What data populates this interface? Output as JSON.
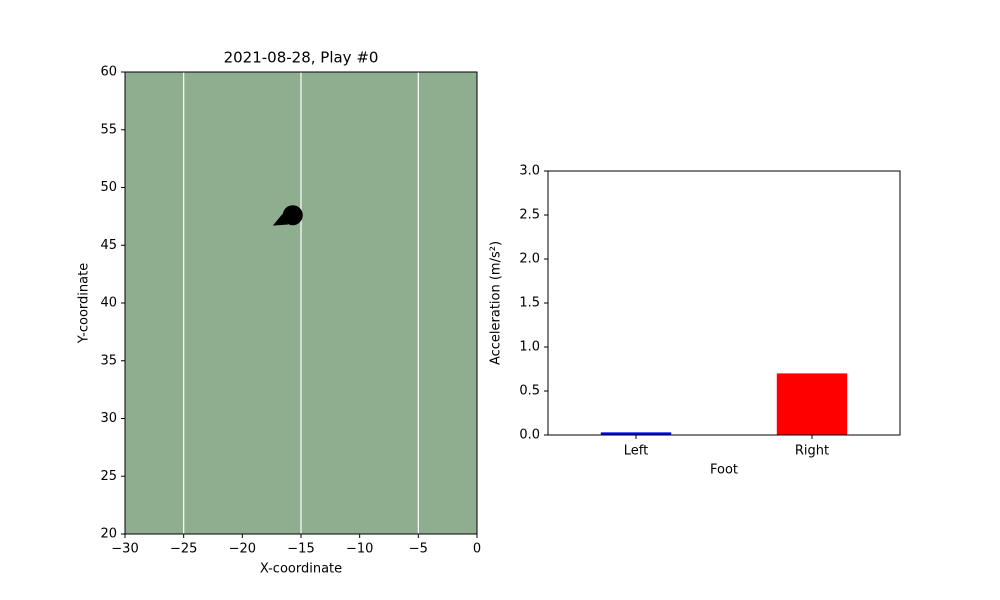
{
  "chart_data": [
    {
      "type": "scatter",
      "title": "2021-08-28, Play #0",
      "xlabel": "X-coordinate",
      "ylabel": "Y-coordinate",
      "x": [
        -15.7
      ],
      "values": [
        47.6
      ],
      "color": "#000000",
      "facecolor": "#8fae8f",
      "arrow_to": [
        [
          -17.4,
          46.7
        ]
      ],
      "vlines": [
        -25,
        -15,
        -5
      ],
      "xlim": [
        -30,
        0
      ],
      "ylim": [
        20,
        60
      ],
      "xticks": [
        {
          "value": -30,
          "label": "−30"
        },
        {
          "value": -25,
          "label": "−25"
        },
        {
          "value": -20,
          "label": "−20"
        },
        {
          "value": -15,
          "label": "−15"
        },
        {
          "value": -10,
          "label": "−10"
        },
        {
          "value": -5,
          "label": "−5"
        },
        0
      ],
      "yticks": [
        20,
        25,
        30,
        35,
        40,
        45,
        50,
        55,
        60
      ]
    },
    {
      "type": "bar",
      "xlabel": "Foot",
      "ylabel": "Acceleration (m/s²)",
      "categories": [
        "Left",
        "Right"
      ],
      "values": [
        0.03,
        0.7
      ],
      "colors": [
        "#0000ff",
        "#ff0000"
      ],
      "ylim": [
        0,
        3
      ],
      "yticks": [
        {
          "value": 0,
          "label": "0.0"
        },
        {
          "value": 0.5,
          "label": "0.5"
        },
        {
          "value": 1,
          "label": "1.0"
        },
        {
          "value": 1.5,
          "label": "1.5"
        },
        {
          "value": 2,
          "label": "2.0"
        },
        {
          "value": 2.5,
          "label": "2.5"
        },
        {
          "value": 3,
          "label": "3.0"
        }
      ]
    }
  ]
}
